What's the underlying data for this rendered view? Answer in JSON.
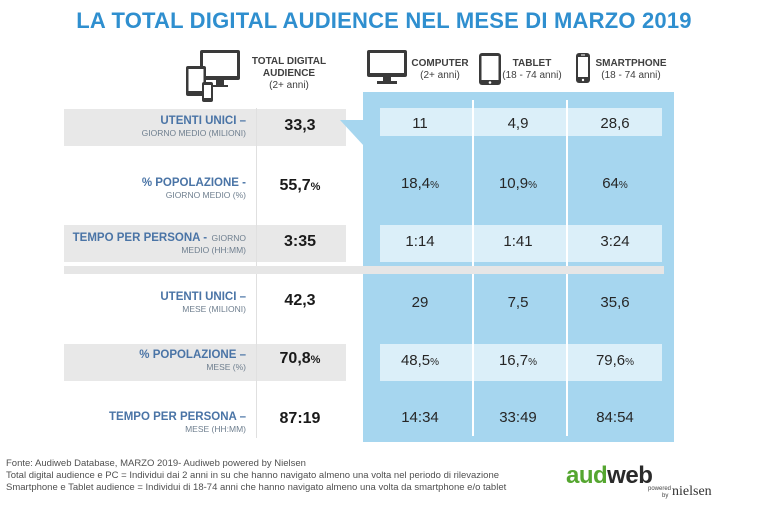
{
  "title": "LA TOTAL DIGITAL AUDIENCE NEL MESE DI MARZO 2019",
  "columns": {
    "total": {
      "label_line1": "TOTAL DIGITAL",
      "label_line2": "AUDIENCE",
      "sub": "(2+ anni)"
    },
    "computer": {
      "label": "COMPUTER",
      "sub": "(2+ anni)"
    },
    "tablet": {
      "label": "TABLET",
      "sub": "(18 - 74 anni)"
    },
    "smartphone": {
      "label": "SMARTPHONE",
      "sub": "(18 - 74 anni)"
    }
  },
  "rows": [
    {
      "label_main": "UTENTI UNICI –",
      "label_sub": "GIORNO MEDIO (MILIONI)",
      "total": "33,3",
      "total_unit": "",
      "computer": "11",
      "computer_unit": "",
      "tablet": "4,9",
      "tablet_unit": "",
      "smartphone": "28,6",
      "smartphone_unit": ""
    },
    {
      "label_main": "% POPOLAZIONE -",
      "label_sub": "GIORNO MEDIO (%)",
      "total": "55,7",
      "total_unit": "%",
      "computer": "18,4",
      "computer_unit": "%",
      "tablet": "10,9",
      "tablet_unit": "%",
      "smartphone": "64",
      "smartphone_unit": "%"
    },
    {
      "label_main": "TEMPO PER PERSONA -",
      "label_main_tail": "GIORNO",
      "label_sub": "MEDIO (HH:MM)",
      "total": "3:35",
      "total_unit": "",
      "computer": "1:14",
      "computer_unit": "",
      "tablet": "1:41",
      "tablet_unit": "",
      "smartphone": "3:24",
      "smartphone_unit": ""
    },
    {
      "label_main": "UTENTI UNICI –",
      "label_sub": "MESE (MILIONI)",
      "total": "42,3",
      "total_unit": "",
      "computer": "29",
      "computer_unit": "",
      "tablet": "7,5",
      "tablet_unit": "",
      "smartphone": "35,6",
      "smartphone_unit": ""
    },
    {
      "label_main": "% POPOLAZIONE –",
      "label_sub": "MESE (%)",
      "total": "70,8",
      "total_unit": "%",
      "computer": "48,5",
      "computer_unit": "%",
      "tablet": "16,7",
      "tablet_unit": "%",
      "smartphone": "79,6",
      "smartphone_unit": "%"
    },
    {
      "label_main": "TEMPO PER PERSONA –",
      "label_sub": "MESE (HH:MM)",
      "total": "87:19",
      "total_unit": "",
      "computer": "14:34",
      "computer_unit": "",
      "tablet": "33:49",
      "tablet_unit": "",
      "smartphone": "84:54",
      "smartphone_unit": ""
    }
  ],
  "footer": {
    "line1": "Fonte: Audiweb Database, MARZO 2019- Audiweb powered by Nielsen",
    "line2": "Total digital audience e PC = Individui dai 2 anni in su che hanno navigato almeno una volta nel periodo di rilevazione",
    "line3": "Smartphone e Tablet audience = Individui di 18-74 anni che hanno navigato almeno una volta da smartphone e/o tablet"
  },
  "logo": {
    "brand_a": "aud",
    "brand_b": "web",
    "powered": "powered",
    "by": "by",
    "nielsen": "nielsen"
  },
  "colors": {
    "title": "#2f8fcf",
    "panel": "#a6d6ef",
    "label": "#4a74a6",
    "logo_green": "#55a630"
  },
  "icons": [
    "devices-icon",
    "monitor-icon",
    "tablet-icon",
    "smartphone-icon"
  ],
  "chart_data": {
    "type": "table",
    "title": "LA TOTAL DIGITAL AUDIENCE NEL MESE DI MARZO 2019",
    "columns": [
      "TOTAL DIGITAL AUDIENCE (2+ anni)",
      "COMPUTER (2+ anni)",
      "TABLET (18 - 74 anni)",
      "SMARTPHONE (18 - 74 anni)"
    ],
    "rows": [
      {
        "name": "UTENTI UNICI – GIORNO MEDIO (MILIONI)",
        "values": [
          "33,3",
          "11",
          "4,9",
          "28,6"
        ]
      },
      {
        "name": "% POPOLAZIONE - GIORNO MEDIO (%)",
        "values": [
          "55,7%",
          "18,4%",
          "10,9%",
          "64%"
        ]
      },
      {
        "name": "TEMPO PER PERSONA - GIORNO MEDIO (HH:MM)",
        "values": [
          "3:35",
          "1:14",
          "1:41",
          "3:24"
        ]
      },
      {
        "name": "UTENTI UNICI – MESE (MILIONI)",
        "values": [
          "42,3",
          "29",
          "7,5",
          "35,6"
        ]
      },
      {
        "name": "% POPOLAZIONE – MESE (%)",
        "values": [
          "70,8%",
          "48,5%",
          "16,7%",
          "79,6%"
        ]
      },
      {
        "name": "TEMPO PER PERSONA – MESE (HH:MM)",
        "values": [
          "87:19",
          "14:34",
          "33:49",
          "84:54"
        ]
      }
    ]
  }
}
